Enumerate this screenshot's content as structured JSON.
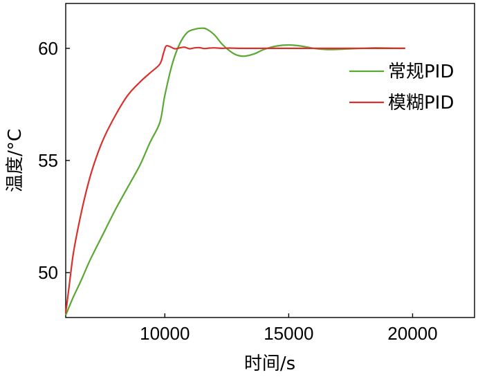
{
  "chart_data": {
    "type": "line",
    "xlabel": "时间/s",
    "ylabel": "温度/°C",
    "xlim": [
      6000,
      22500
    ],
    "ylim": [
      48,
      62
    ],
    "xticks": [
      10000,
      15000,
      20000
    ],
    "yticks": [
      50,
      55,
      60
    ],
    "xtick_labels": [
      "10000",
      "15000",
      "20000"
    ],
    "ytick_labels": [
      "50",
      "55",
      "60"
    ],
    "grid": false,
    "legend_position": "top-right",
    "series": [
      {
        "name": "常规PID",
        "color": "#5aa832",
        "x": [
          6000,
          6300,
          6600,
          7000,
          7500,
          8000,
          8500,
          9000,
          9400,
          9800,
          10000,
          10300,
          10600,
          10900,
          11200,
          11500,
          11700,
          12000,
          12300,
          12600,
          12900,
          13200,
          13600,
          14000,
          14500,
          15000,
          15500,
          16000,
          16500,
          16900,
          17500,
          18000,
          18500,
          19000,
          19700
        ],
        "y": [
          48.1,
          48.9,
          49.6,
          50.6,
          51.7,
          52.8,
          53.8,
          54.8,
          55.8,
          56.7,
          57.9,
          59.3,
          60.2,
          60.7,
          60.85,
          60.9,
          60.85,
          60.6,
          60.2,
          59.9,
          59.7,
          59.65,
          59.75,
          59.95,
          60.1,
          60.15,
          60.1,
          60.0,
          59.95,
          59.95,
          59.98,
          60.0,
          60.02,
          60.01,
          60.0
        ]
      },
      {
        "name": "模糊PID",
        "color": "#d9302c",
        "x": [
          6000,
          6150,
          6300,
          6500,
          6800,
          7100,
          7500,
          8000,
          8500,
          9000,
          9400,
          9800,
          9950,
          10050,
          10200,
          10400,
          10600,
          10800,
          11000,
          11200,
          11400,
          11600,
          11800,
          12000,
          12300,
          12600,
          13000,
          14000,
          15000,
          16000,
          17000,
          18000,
          19000,
          19700
        ],
        "y": [
          48.2,
          49.5,
          50.8,
          52.0,
          53.5,
          54.7,
          55.9,
          57.0,
          57.9,
          58.5,
          58.9,
          59.3,
          59.8,
          60.1,
          60.08,
          59.98,
          60.02,
          60.05,
          59.98,
          60.02,
          60.03,
          59.99,
          60.01,
          60.02,
          60.0,
          60.01,
          60.0,
          60.0,
          60.0,
          60.0,
          60.0,
          60.0,
          60.0,
          60.0
        ]
      }
    ]
  }
}
